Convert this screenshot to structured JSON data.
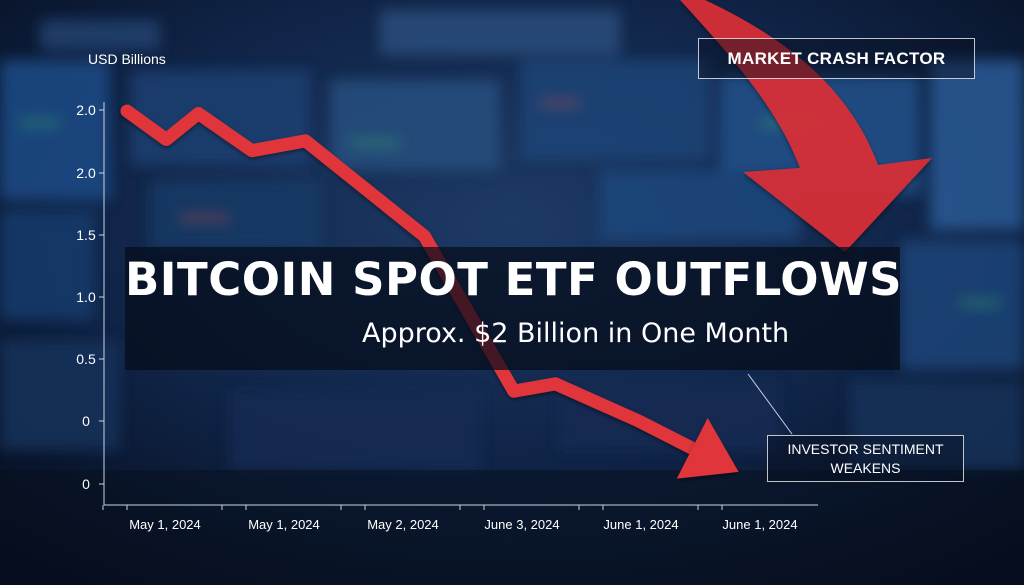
{
  "headline": "BITCOIN SPOT ETF OUTFLOWS",
  "subheadline": "Approx. $2 Billion in One Month",
  "callouts": {
    "market_crash": "MARKET CRASH FACTOR",
    "sentiment_line1": "INVESTOR SENTIMENT",
    "sentiment_line2": "WEAKENS"
  },
  "colors": {
    "line": "#e0353a",
    "arrow": "#dc2f35",
    "text": "#ffffff",
    "axis": "#c9d3e6",
    "background": "#0b1730"
  },
  "chart_data": {
    "type": "line",
    "ylabel": "USD Billions",
    "y_tick_labels": [
      "2.0",
      "2.0",
      "1.5",
      "1.0",
      "0.5",
      "0",
      "0"
    ],
    "x_tick_labels": [
      "May 1, 2024",
      "May 1, 2024",
      "May 2, 2024",
      "June 3, 2024",
      "June 1, 2024",
      "June 1, 2024"
    ],
    "ylim": [
      -0.5,
      2.5
    ],
    "grid": false,
    "series": [
      {
        "x": [
          0,
          0.33,
          0.6,
          1.05,
          1.5,
          2.5,
          3.25,
          3.6,
          4.3,
          4.75
        ],
        "y": [
          2.5,
          2.27,
          2.48,
          2.18,
          2.26,
          1.49,
          0.24,
          0.3,
          0.0,
          -0.22
        ]
      }
    ]
  }
}
